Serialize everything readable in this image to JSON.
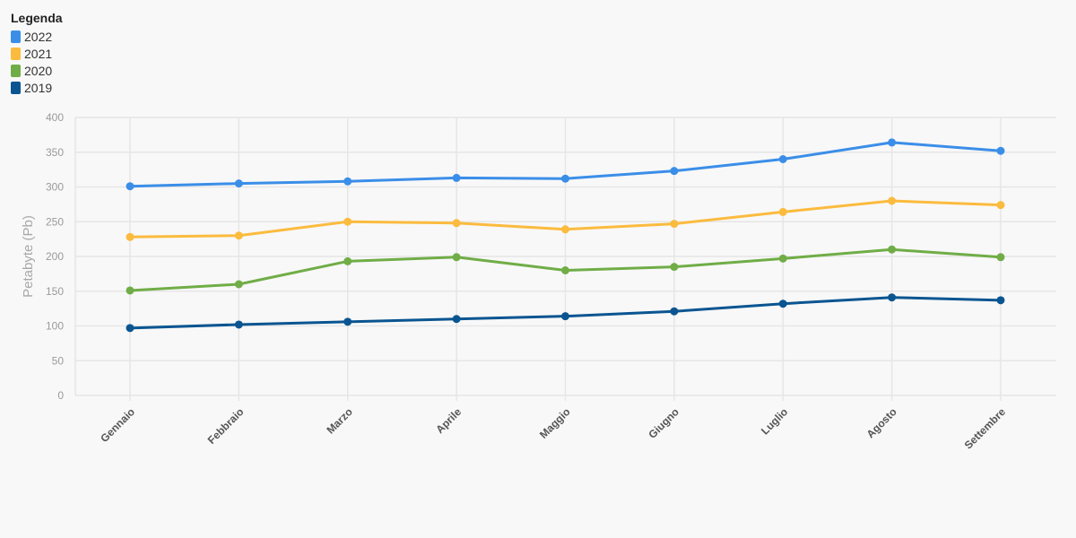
{
  "chart_data": {
    "type": "line",
    "legend_title": "Legenda",
    "legend_position": "top-left",
    "ylabel": "Petabyte (Pb)",
    "xlabel": "",
    "ylim": [
      0,
      400
    ],
    "yticks": [
      0,
      50,
      100,
      150,
      200,
      250,
      300,
      350,
      400
    ],
    "grid": true,
    "categories": [
      "Gennaio",
      "Febbraio",
      "Marzo",
      "Aprile",
      "Maggio",
      "Giugno",
      "Luglio",
      "Agosto",
      "Settembre"
    ],
    "series": [
      {
        "name": "2022",
        "color": "#3b8ee8",
        "values": [
          301,
          305,
          308,
          313,
          312,
          323,
          340,
          364,
          352
        ]
      },
      {
        "name": "2021",
        "color": "#fbbb3e",
        "values": [
          228,
          230,
          250,
          248,
          239,
          247,
          264,
          280,
          274
        ]
      },
      {
        "name": "2020",
        "color": "#70ad47",
        "values": [
          151,
          160,
          193,
          199,
          180,
          185,
          197,
          210,
          199
        ]
      },
      {
        "name": "2019",
        "color": "#0a5591",
        "values": [
          97,
          102,
          106,
          110,
          114,
          121,
          132,
          141,
          137
        ]
      }
    ]
  }
}
